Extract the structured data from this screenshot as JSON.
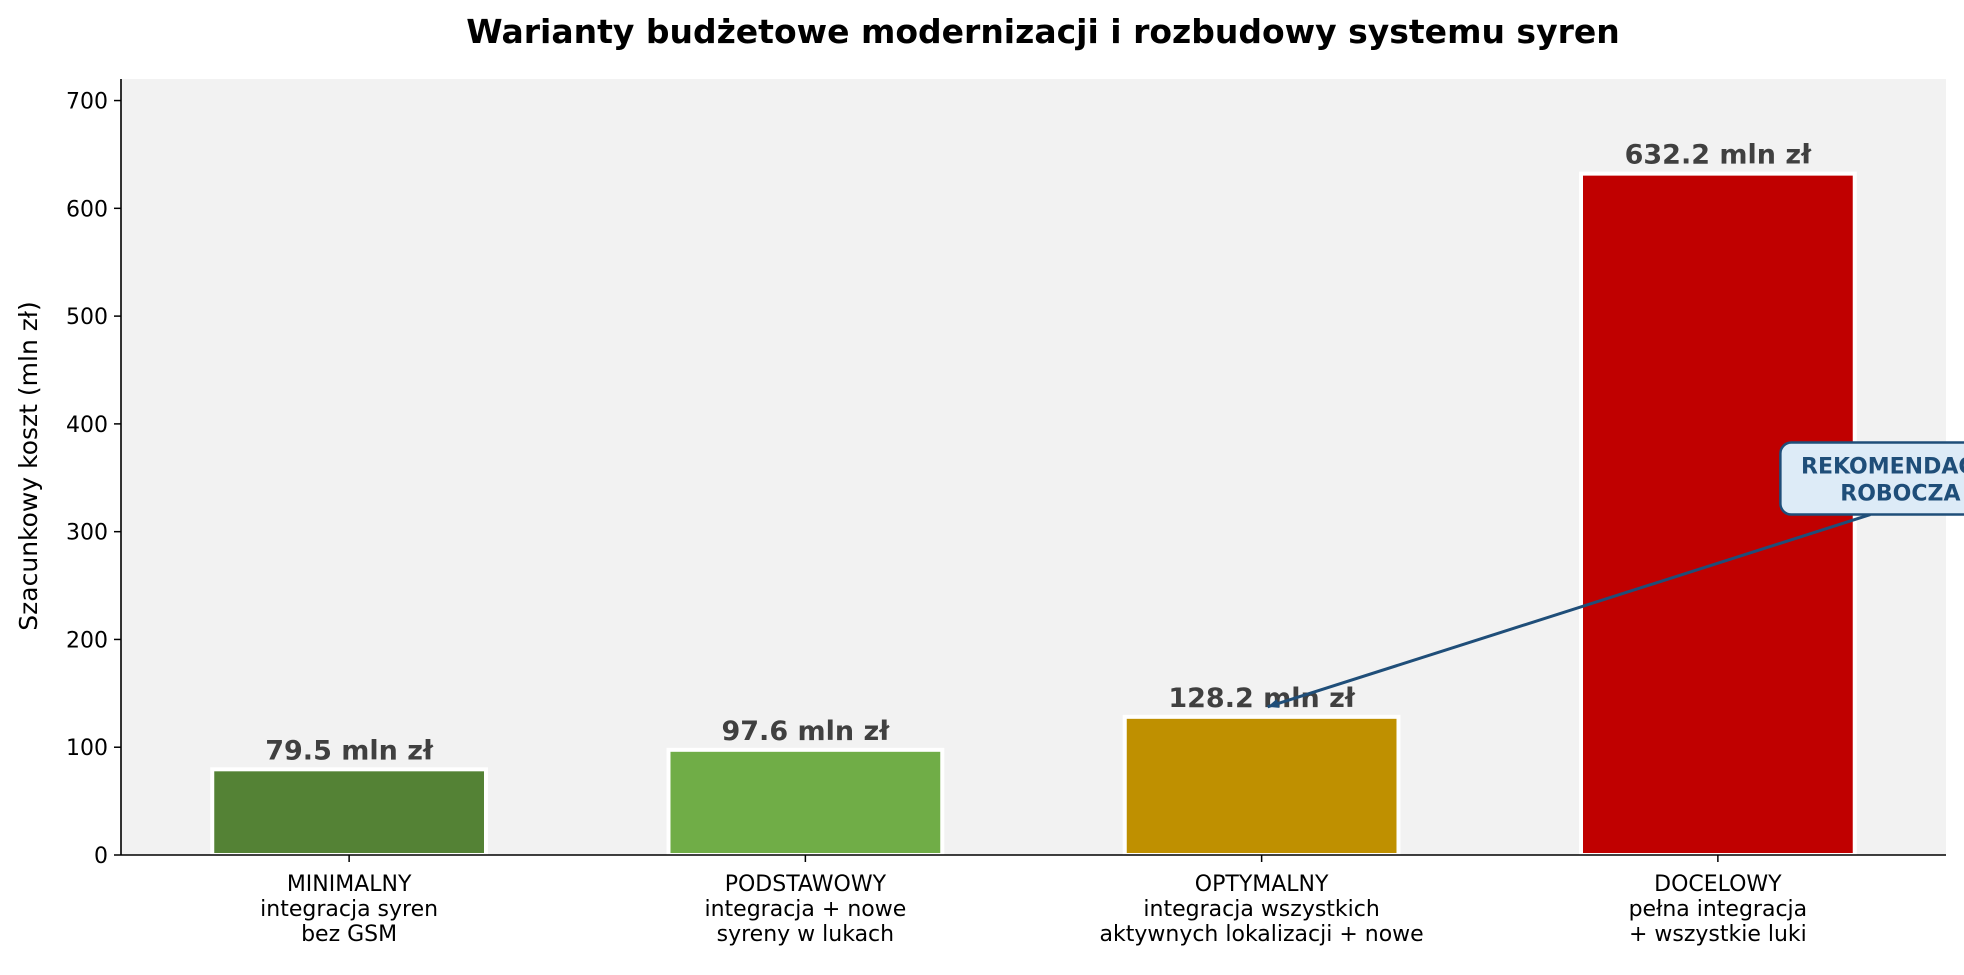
{
  "chart_data": {
    "type": "bar",
    "title": "Warianty budżetowe modernizacji i rozbudowy systemu syren",
    "xlabel": "",
    "ylabel": "Szacunkowy koszt (mln zł)",
    "ylim": [
      0,
      720
    ],
    "yticks": [
      0,
      100,
      200,
      300,
      400,
      500,
      600,
      700
    ],
    "grid": false,
    "categories": [
      [
        "MINIMALNY",
        "integracja syren",
        "bez GSM"
      ],
      [
        "PODSTAWOWY",
        "integracja + nowe",
        "syreny w lukach"
      ],
      [
        "OPTYMALNY",
        "integracja wszystkich",
        "aktywnych lokalizacji + nowe"
      ],
      [
        "DOCELOWY",
        "pełna integracja",
        "+ wszystkie luki"
      ]
    ],
    "values": [
      79.5,
      97.6,
      128.2,
      632.2
    ],
    "value_labels": [
      "79.5 mln zł",
      "97.6 mln zł",
      "128.2 mln zł",
      "632.2 mln zł"
    ],
    "colors": [
      "#548235",
      "#70AD47",
      "#BF9000",
      "#C00000"
    ],
    "plot_background": "#F2F2F2",
    "annotation": {
      "lines": [
        "REKOMENDACJA",
        "ROBOCZA"
      ],
      "target_index": 2,
      "anchor": [
        3.4,
        340
      ],
      "color": "#1F4E79",
      "box_fill": "#DDEBF7"
    }
  }
}
